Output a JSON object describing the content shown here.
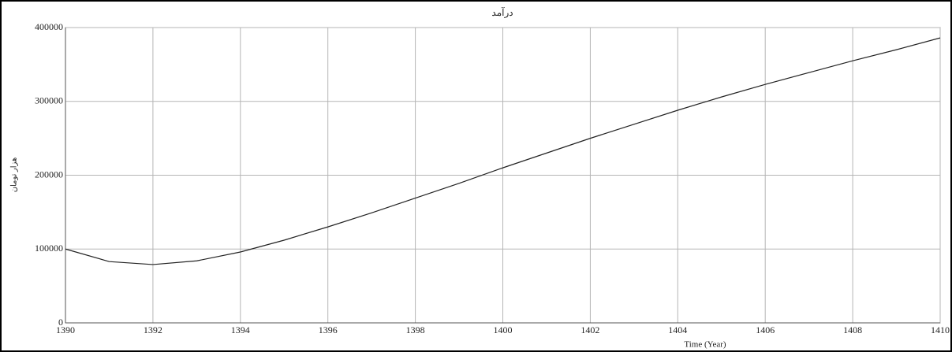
{
  "chart_data": {
    "type": "line",
    "title": "درآمد",
    "xlabel": "Time (Year)",
    "ylabel": "هزار تومان",
    "x": [
      1390,
      1391,
      1392,
      1393,
      1394,
      1395,
      1396,
      1397,
      1398,
      1399,
      1400,
      1401,
      1402,
      1403,
      1404,
      1405,
      1406,
      1407,
      1408,
      1409,
      1410
    ],
    "series": [
      {
        "name": "درآمد",
        "color": "#222222",
        "values": [
          100000,
          83000,
          79000,
          84000,
          96000,
          112000,
          130000,
          149000,
          169000,
          189000,
          210000,
          230000,
          250000,
          269000,
          288000,
          306000,
          323000,
          339000,
          355000,
          370000,
          386000
        ]
      }
    ],
    "xlim": [
      1390,
      1410
    ],
    "xticks": [
      1390,
      1392,
      1394,
      1396,
      1398,
      1400,
      1402,
      1404,
      1406,
      1408,
      1410
    ],
    "ylim": [
      0,
      400000
    ],
    "yticks": [
      0,
      100000,
      200000,
      300000,
      400000
    ],
    "grid": true
  }
}
